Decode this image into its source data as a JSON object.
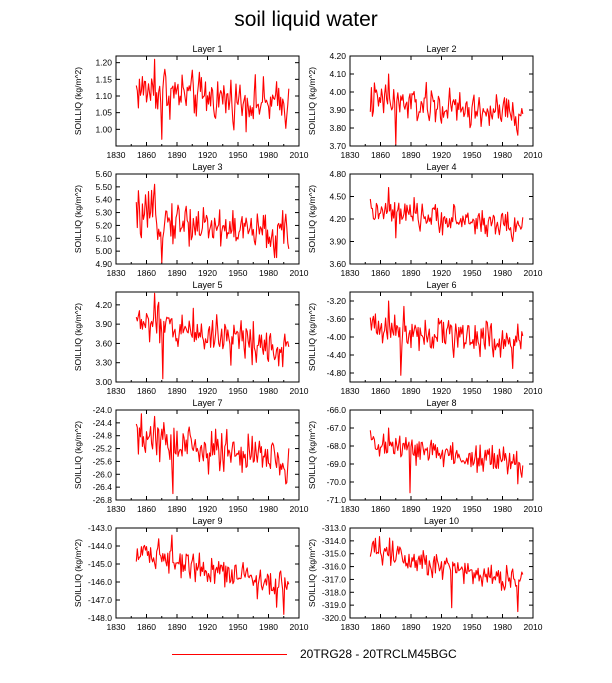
{
  "figure": {
    "title": "soil liquid water",
    "legend": {
      "label": "20TRG28 - 20TRCLM45BGC",
      "color": "#ff0000"
    }
  },
  "chart_data": [
    {
      "type": "line",
      "title": "Layer 1",
      "ylabel": "SOILLIQ  (kg/m^2)",
      "xlim": [
        1830,
        2010
      ],
      "ylim": [
        0.95,
        1.22
      ],
      "xticks": [
        1830,
        1860,
        1890,
        1920,
        1950,
        1980,
        2010
      ],
      "yticks": [
        "1.00",
        "1.05",
        "1.10",
        "1.15",
        "1.20"
      ],
      "series": [
        {
          "x_start": 1850,
          "x_end": 2000,
          "base": 1.12,
          "end": 1.07,
          "amp": 0.045,
          "extremes": [
            [
              1875,
              0.97
            ],
            [
              1868,
              1.21
            ],
            [
              1878,
              1.18
            ]
          ]
        }
      ]
    },
    {
      "type": "line",
      "title": "Layer 2",
      "ylabel": "SOILLIQ  (kg/m^2)",
      "xlim": [
        1830,
        2010
      ],
      "ylim": [
        3.7,
        4.2
      ],
      "xticks": [
        1830,
        1860,
        1890,
        1920,
        1950,
        1980,
        2010
      ],
      "yticks": [
        "3.70",
        "3.80",
        "3.90",
        "4.00",
        "4.10",
        "4.20"
      ],
      "series": [
        {
          "x_start": 1850,
          "x_end": 2000,
          "base": 3.95,
          "end": 3.87,
          "amp": 0.07,
          "extremes": [
            [
              1875,
              3.71
            ],
            [
              1868,
              4.1
            ],
            [
              1995,
              3.76
            ]
          ]
        }
      ]
    },
    {
      "type": "line",
      "title": "Layer 3",
      "ylabel": "SOILLIQ  (kg/m^2)",
      "xlim": [
        1830,
        2010
      ],
      "ylim": [
        4.9,
        5.6
      ],
      "xticks": [
        1830,
        1860,
        1890,
        1920,
        1950,
        1980,
        2010
      ],
      "yticks": [
        "4.90",
        "5.00",
        "5.10",
        "5.20",
        "5.30",
        "5.40",
        "5.50",
        "5.60"
      ],
      "series": [
        {
          "x_start": 1850,
          "x_end": 2000,
          "base": 5.27,
          "end": 5.12,
          "amp": 0.11,
          "extremes": [
            [
              1875,
              4.91
            ],
            [
              1868,
              5.52
            ],
            [
              1986,
              4.95
            ]
          ]
        }
      ]
    },
    {
      "type": "line",
      "title": "Layer 4",
      "ylabel": "SOILLIQ  (kg/m^2)",
      "xlim": [
        1830,
        2010
      ],
      "ylim": [
        3.6,
        4.8
      ],
      "xticks": [
        1830,
        1860,
        1890,
        1920,
        1950,
        1980,
        2010
      ],
      "yticks": [
        "3.60",
        "3.90",
        "4.20",
        "4.50",
        "4.80"
      ],
      "series": [
        {
          "x_start": 1850,
          "x_end": 2000,
          "base": 4.3,
          "end": 4.1,
          "amp": 0.12,
          "extremes": [
            [
              1875,
              3.95
            ],
            [
              1868,
              4.62
            ],
            [
              1990,
              3.9
            ]
          ]
        }
      ]
    },
    {
      "type": "line",
      "title": "Layer 5",
      "ylabel": "SOILLIQ  (kg/m^2)",
      "xlim": [
        1830,
        2010
      ],
      "ylim": [
        3.0,
        4.4
      ],
      "xticks": [
        1830,
        1860,
        1890,
        1920,
        1950,
        1980,
        2010
      ],
      "yticks": [
        "3.00",
        "3.30",
        "3.60",
        "3.90",
        "4.20"
      ],
      "series": [
        {
          "x_start": 1850,
          "x_end": 2000,
          "base": 3.95,
          "end": 3.55,
          "amp": 0.22,
          "extremes": [
            [
              1876,
              3.05
            ],
            [
              1868,
              4.38
            ],
            [
              1990,
              3.25
            ]
          ]
        }
      ]
    },
    {
      "type": "line",
      "title": "Layer 6",
      "ylabel": "SOILLIQ  (kg/m^2)",
      "xlim": [
        1830,
        2010
      ],
      "ylim": [
        -5.0,
        -3.0
      ],
      "xticks": [
        1830,
        1860,
        1890,
        1920,
        1950,
        1980,
        2010
      ],
      "yticks": [
        "-4.80",
        "-4.40",
        "-4.00",
        "-3.60",
        "-3.20"
      ],
      "series": [
        {
          "x_start": 1850,
          "x_end": 2000,
          "base": -3.75,
          "end": -4.1,
          "amp": 0.28,
          "extremes": [
            [
              1880,
              -4.85
            ],
            [
              1868,
              -3.2
            ],
            [
              1990,
              -4.7
            ]
          ]
        }
      ]
    },
    {
      "type": "line",
      "title": "Layer 7",
      "ylabel": "SOILLIQ  (kg/m^2)",
      "xlim": [
        1830,
        2010
      ],
      "ylim": [
        -26.8,
        -24.0
      ],
      "xticks": [
        1830,
        1860,
        1890,
        1920,
        1950,
        1980,
        2010
      ],
      "yticks": [
        "-26.8",
        "-26.4",
        "-26.0",
        "-25.6",
        "-25.2",
        "-24.8",
        "-24.4",
        "-24.0"
      ],
      "series": [
        {
          "x_start": 1850,
          "x_end": 2000,
          "base": -24.9,
          "end": -25.6,
          "amp": 0.45,
          "extremes": [
            [
              1886,
              -26.6
            ],
            [
              1868,
              -24.2
            ],
            [
              1997,
              -26.3
            ]
          ]
        }
      ]
    },
    {
      "type": "line",
      "title": "Layer 8",
      "ylabel": "SOILLIQ  (kg/m^2)",
      "xlim": [
        1830,
        2010
      ],
      "ylim": [
        -71.0,
        -66.0
      ],
      "xticks": [
        1830,
        1860,
        1890,
        1920,
        1950,
        1980,
        2010
      ],
      "yticks": [
        "-71.0",
        "-70.0",
        "-69.0",
        "-68.0",
        "-67.0",
        "-66.0"
      ],
      "series": [
        {
          "x_start": 1850,
          "x_end": 2000,
          "base": -67.9,
          "end": -69.0,
          "amp": 0.55,
          "extremes": [
            [
              1889,
              -70.6
            ],
            [
              1868,
              -67.0
            ],
            [
              1995,
              -70.1
            ]
          ]
        }
      ]
    },
    {
      "type": "line",
      "title": "Layer 9",
      "ylabel": "SOILLIQ  (kg/m^2)",
      "xlim": [
        1830,
        2010
      ],
      "ylim": [
        -148.0,
        -143.0
      ],
      "xticks": [
        1830,
        1860,
        1890,
        1920,
        1950,
        1980,
        2010
      ],
      "yticks": [
        "-148.0",
        "-147.0",
        "-146.0",
        "-145.0",
        "-144.0",
        "-143.0"
      ],
      "series": [
        {
          "x_start": 1850,
          "x_end": 2000,
          "base": -144.2,
          "end": -146.3,
          "amp": 0.55,
          "extremes": [
            [
              1885,
              -143.4
            ],
            [
              1995,
              -147.8
            ],
            [
              1988,
              -147.4
            ]
          ]
        }
      ]
    },
    {
      "type": "line",
      "title": "Layer 10",
      "ylabel": "SOILLIQ  (kg/m^2)",
      "xlim": [
        1830,
        2010
      ],
      "ylim": [
        -320.0,
        -313.0
      ],
      "xticks": [
        1830,
        1860,
        1890,
        1920,
        1950,
        1980,
        2010
      ],
      "yticks": [
        "-320.0",
        "-319.0",
        "-318.0",
        "-317.0",
        "-316.0",
        "-315.0",
        "-314.0",
        "-313.0"
      ],
      "series": [
        {
          "x_start": 1850,
          "x_end": 2000,
          "base": -314.6,
          "end": -317.2,
          "amp": 0.75,
          "extremes": [
            [
              1855,
              -313.8
            ],
            [
              1930,
              -319.2
            ],
            [
              1995,
              -319.5
            ]
          ]
        }
      ]
    }
  ]
}
